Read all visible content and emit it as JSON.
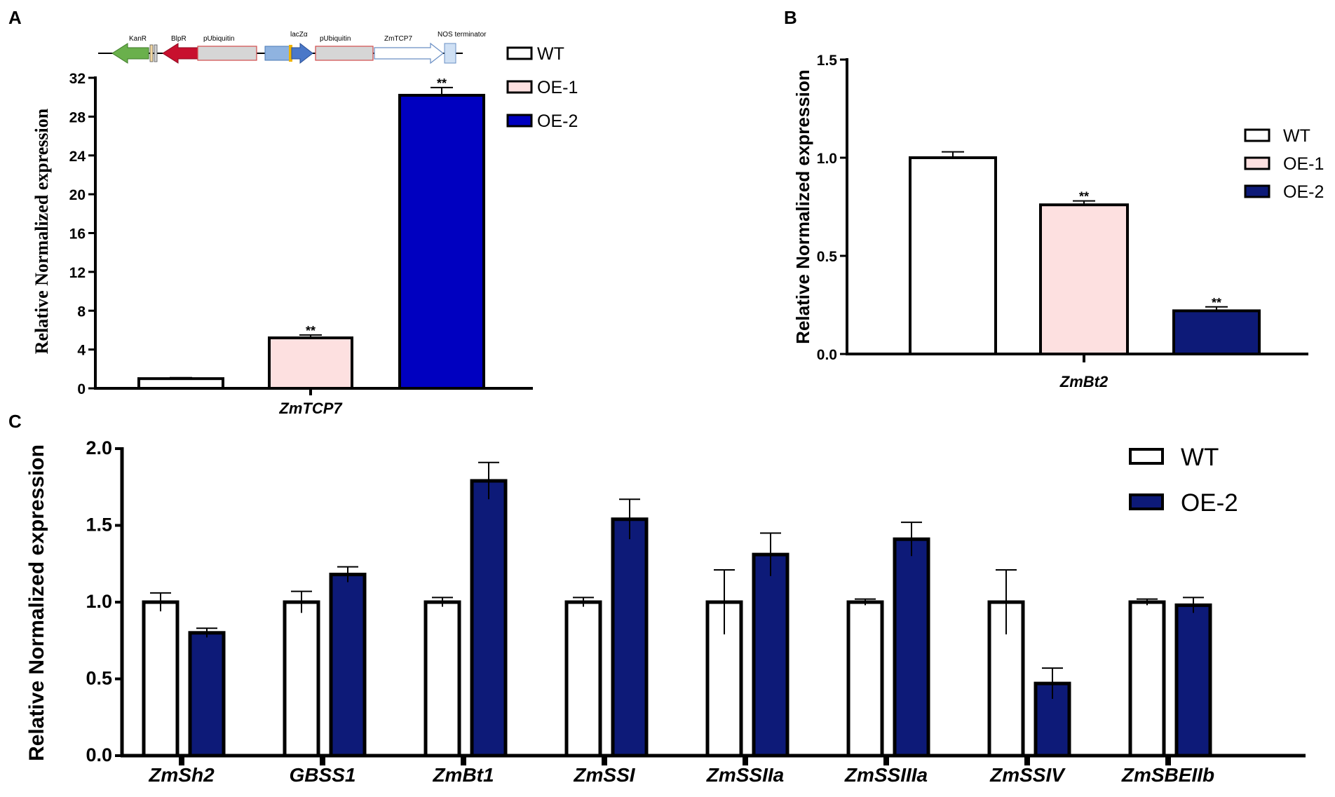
{
  "colors": {
    "WT": "#ffffff",
    "OE-1": "#fde0e0",
    "OE-2A": "#0000c0",
    "OE-2": "#0d1a78",
    "axis": "#000000"
  },
  "construct": {
    "labels": [
      "KanR",
      "BlpR",
      "pUbiquitin",
      "lacZα",
      "pUbiquitin",
      "ZmTCP7",
      "NOS terminator"
    ]
  },
  "chart_data": [
    {
      "panel": "A",
      "type": "bar",
      "categories": [
        "ZmTCP7"
      ],
      "series": [
        {
          "name": "WT",
          "values": [
            1.0
          ],
          "errors": [
            0.1
          ],
          "significance": [
            ""
          ]
        },
        {
          "name": "OE-1",
          "values": [
            5.2
          ],
          "errors": [
            0.3
          ],
          "significance": [
            "**"
          ]
        },
        {
          "name": "OE-2",
          "values": [
            30.2
          ],
          "errors": [
            0.8
          ],
          "significance": [
            "**"
          ]
        }
      ],
      "ylabel": "Relative Normalized expression",
      "ylim": [
        0,
        32
      ],
      "yticks": [
        "0",
        "4",
        "8",
        "12",
        "16",
        "20",
        "24",
        "28",
        "32"
      ],
      "legend": [
        "WT",
        "OE-1",
        "OE-2"
      ]
    },
    {
      "panel": "B",
      "type": "bar",
      "categories": [
        "ZmBt2"
      ],
      "series": [
        {
          "name": "WT",
          "values": [
            1.0
          ],
          "errors": [
            0.03
          ],
          "significance": [
            ""
          ]
        },
        {
          "name": "OE-1",
          "values": [
            0.76
          ],
          "errors": [
            0.02
          ],
          "significance": [
            "**"
          ]
        },
        {
          "name": "OE-2",
          "values": [
            0.22
          ],
          "errors": [
            0.02
          ],
          "significance": [
            "**"
          ]
        }
      ],
      "ylabel": "Relative Normalized expression",
      "ylim": [
        0,
        1.5
      ],
      "yticks": [
        "0.0",
        "0.5",
        "1.0",
        "1.5"
      ],
      "legend": [
        "WT",
        "OE-1",
        "OE-2"
      ]
    },
    {
      "panel": "C",
      "type": "bar",
      "categories": [
        "ZmSh2",
        "GBSS1",
        "ZmBt1",
        "ZmSSI",
        "ZmSSIIa",
        "ZmSSIIIa",
        "ZmSSIV",
        "ZmSBEIIb"
      ],
      "series": [
        {
          "name": "WT",
          "values": [
            1.0,
            1.0,
            1.0,
            1.0,
            1.0,
            1.0,
            1.0,
            1.0
          ],
          "errors": [
            0.06,
            0.07,
            0.03,
            0.03,
            0.21,
            0.02,
            0.21,
            0.02
          ]
        },
        {
          "name": "OE-2",
          "values": [
            0.8,
            1.18,
            1.79,
            1.54,
            1.31,
            1.41,
            0.47,
            0.98
          ],
          "errors": [
            0.03,
            0.05,
            0.12,
            0.13,
            0.14,
            0.11,
            0.1,
            0.05
          ]
        }
      ],
      "ylabel": "Relative Normalized expression",
      "ylim": [
        0,
        2.0
      ],
      "yticks": [
        "0.0",
        "0.5",
        "1.0",
        "1.5",
        "2.0"
      ],
      "legend": [
        "WT",
        "OE-2"
      ]
    }
  ],
  "panels": {
    "A": "A",
    "B": "B",
    "C": "C"
  }
}
